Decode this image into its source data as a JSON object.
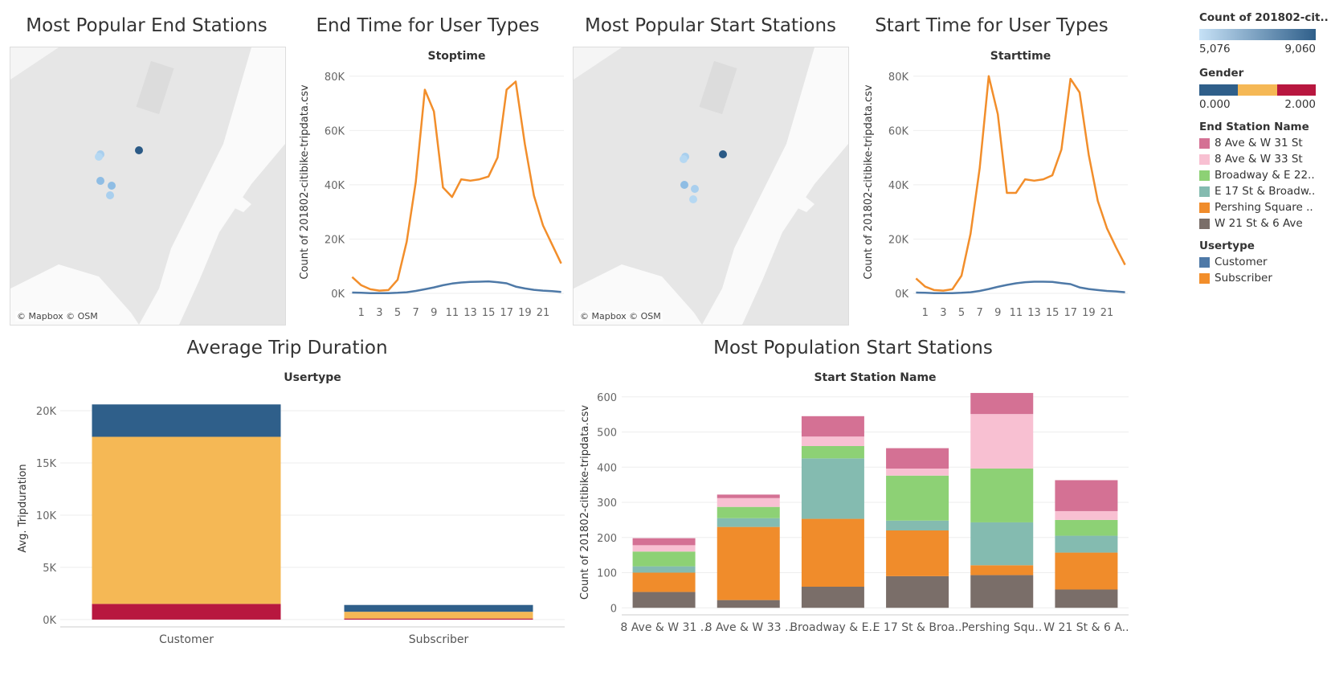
{
  "titles": {
    "end_stations": "Most Popular End Stations",
    "end_time": "End Time for User Types",
    "start_stations": "Most Popular Start Stations",
    "start_time": "Start Time for User Types",
    "avg_duration": "Average Trip Duration",
    "start_population": "Most Population Start Stations"
  },
  "map_credit": "© Mapbox © OSM",
  "legend": {
    "count_title": "Count of 201802-cit..",
    "count_min": "5,076",
    "count_max": "9,060",
    "count_colors": [
      "#c6e1f6",
      "#2f5f8a"
    ],
    "gender_title": "Gender",
    "gender_min": "0.000",
    "gender_max": "2.000",
    "gender_colors": [
      "#2f5f8a",
      "#f5b855",
      "#b8173f"
    ],
    "station_title": "End Station Name",
    "stations": [
      {
        "label": "8 Ave & W 31 St",
        "color": "#d47194"
      },
      {
        "label": "8 Ave & W 33 St",
        "color": "#f8c0d2"
      },
      {
        "label": "Broadway & E 22..",
        "color": "#8dd175"
      },
      {
        "label": "E 17 St & Broadw..",
        "color": "#84bbb0"
      },
      {
        "label": "Pershing Square ..",
        "color": "#f08c2b"
      },
      {
        "label": "W 21 St & 6 Ave",
        "color": "#7a6e69"
      }
    ],
    "usertype_title": "Usertype",
    "usertypes": [
      {
        "label": "Customer",
        "color": "#4e79a7"
      },
      {
        "label": "Subscriber",
        "color": "#f28e2b"
      }
    ]
  },
  "chart_data": [
    {
      "type": "line",
      "title": "End Time for User Types",
      "header": "Stoptime",
      "ylabel": "Count of 201802-citibike-tripdata.csv",
      "x": [
        0,
        1,
        2,
        3,
        4,
        5,
        6,
        7,
        8,
        9,
        10,
        11,
        12,
        13,
        14,
        15,
        16,
        17,
        18,
        19,
        20,
        21,
        22,
        23
      ],
      "xticks": [
        "1",
        "3",
        "5",
        "7",
        "9",
        "11",
        "13",
        "15",
        "17",
        "19",
        "21"
      ],
      "xtick_values": [
        1,
        3,
        5,
        7,
        9,
        11,
        13,
        15,
        17,
        19,
        21
      ],
      "yticks": [
        "0K",
        "20K",
        "40K",
        "60K",
        "80K"
      ],
      "ytick_values": [
        0,
        20000,
        40000,
        60000,
        80000
      ],
      "ylim": [
        0,
        82000
      ],
      "series": [
        {
          "name": "Subscriber",
          "color": "#f28e2b",
          "values": [
            6000,
            3000,
            1500,
            1000,
            1200,
            5000,
            19000,
            41000,
            75000,
            67000,
            39000,
            35500,
            42000,
            41500,
            42000,
            43000,
            50000,
            75000,
            78000,
            55000,
            36000,
            25000,
            18000,
            11000
          ]
        },
        {
          "name": "Customer",
          "color": "#4e79a7",
          "values": [
            300,
            200,
            100,
            80,
            100,
            200,
            400,
            900,
            1500,
            2200,
            3000,
            3600,
            4000,
            4200,
            4300,
            4400,
            4100,
            3700,
            2500,
            1800,
            1300,
            1000,
            800,
            500
          ]
        }
      ]
    },
    {
      "type": "line",
      "title": "Start Time for User Types",
      "header": "Starttime",
      "ylabel": "Count of 201802-citibike-tripdata.csv",
      "x": [
        0,
        1,
        2,
        3,
        4,
        5,
        6,
        7,
        8,
        9,
        10,
        11,
        12,
        13,
        14,
        15,
        16,
        17,
        18,
        19,
        20,
        21,
        22,
        23
      ],
      "xticks": [
        "1",
        "3",
        "5",
        "7",
        "9",
        "11",
        "13",
        "15",
        "17",
        "19",
        "21"
      ],
      "xtick_values": [
        1,
        3,
        5,
        7,
        9,
        11,
        13,
        15,
        17,
        19,
        21
      ],
      "yticks": [
        "0K",
        "20K",
        "40K",
        "60K",
        "80K"
      ],
      "ytick_values": [
        0,
        20000,
        40000,
        60000,
        80000
      ],
      "ylim": [
        0,
        82000
      ],
      "series": [
        {
          "name": "Subscriber",
          "color": "#f28e2b",
          "values": [
            5500,
            2500,
            1200,
            1000,
            1500,
            6500,
            22000,
            46000,
            80000,
            66000,
            37000,
            37000,
            42000,
            41500,
            42000,
            43500,
            53000,
            79000,
            74000,
            51000,
            34000,
            24000,
            17000,
            10500
          ]
        },
        {
          "name": "Customer",
          "color": "#4e79a7",
          "values": [
            300,
            200,
            100,
            80,
            100,
            200,
            400,
            900,
            1600,
            2400,
            3100,
            3700,
            4100,
            4300,
            4300,
            4200,
            3800,
            3400,
            2200,
            1600,
            1200,
            900,
            700,
            400
          ]
        }
      ]
    },
    {
      "type": "bar",
      "stacked": true,
      "title": "Average Trip Duration",
      "header": "Usertype",
      "ylabel": "Avg. Tripduration",
      "categories": [
        "Customer",
        "Subscriber"
      ],
      "yticks": [
        "0K",
        "5K",
        "10K",
        "15K",
        "20K"
      ],
      "ytick_values": [
        0,
        5000,
        10000,
        15000,
        20000
      ],
      "ylim": [
        -700,
        22000
      ],
      "series": [
        {
          "name": "2.000",
          "color": "#b8173f",
          "values": [
            1500,
            100
          ]
        },
        {
          "name": "1.000",
          "color": "#f5b855",
          "values": [
            16000,
            650
          ]
        },
        {
          "name": "0.000",
          "color": "#2f5f8a",
          "values": [
            3100,
            650
          ]
        }
      ]
    },
    {
      "type": "bar",
      "stacked": true,
      "title": "Most Population Start Stations",
      "header": "Start Station Name",
      "ylabel": "Count of 201802-citibike-tripdata.csv",
      "categories": [
        "8 Ave & W 31 ..",
        "8 Ave & W 33 ..",
        "Broadway & E..",
        "E 17 St & Broa..",
        "Pershing Squ..",
        "W 21 St & 6 A.."
      ],
      "yticks": [
        "0",
        "100",
        "200",
        "300",
        "400",
        "500",
        "600"
      ],
      "ytick_values": [
        0,
        100,
        200,
        300,
        400,
        500,
        600
      ],
      "ylim": [
        -20,
        620
      ],
      "series": [
        {
          "name": "W 21 St & 6 Ave",
          "color": "#7a6e69",
          "values": [
            45,
            22,
            60,
            90,
            93,
            52
          ]
        },
        {
          "name": "Pershing Square ..",
          "color": "#f08c2b",
          "values": [
            55,
            208,
            193,
            130,
            28,
            105
          ]
        },
        {
          "name": "E 17 St & Broadw..",
          "color": "#84bbb0",
          "values": [
            18,
            25,
            172,
            28,
            122,
            48
          ]
        },
        {
          "name": "Broadway & E 22..",
          "color": "#8dd175",
          "values": [
            42,
            32,
            35,
            128,
            153,
            45
          ]
        },
        {
          "name": "8 Ave & W 33 St",
          "color": "#f8c0d2",
          "values": [
            18,
            25,
            27,
            20,
            155,
            25
          ]
        },
        {
          "name": "8 Ave & W 31 St",
          "color": "#d47194",
          "values": [
            20,
            10,
            58,
            58,
            60,
            88
          ]
        }
      ]
    }
  ]
}
